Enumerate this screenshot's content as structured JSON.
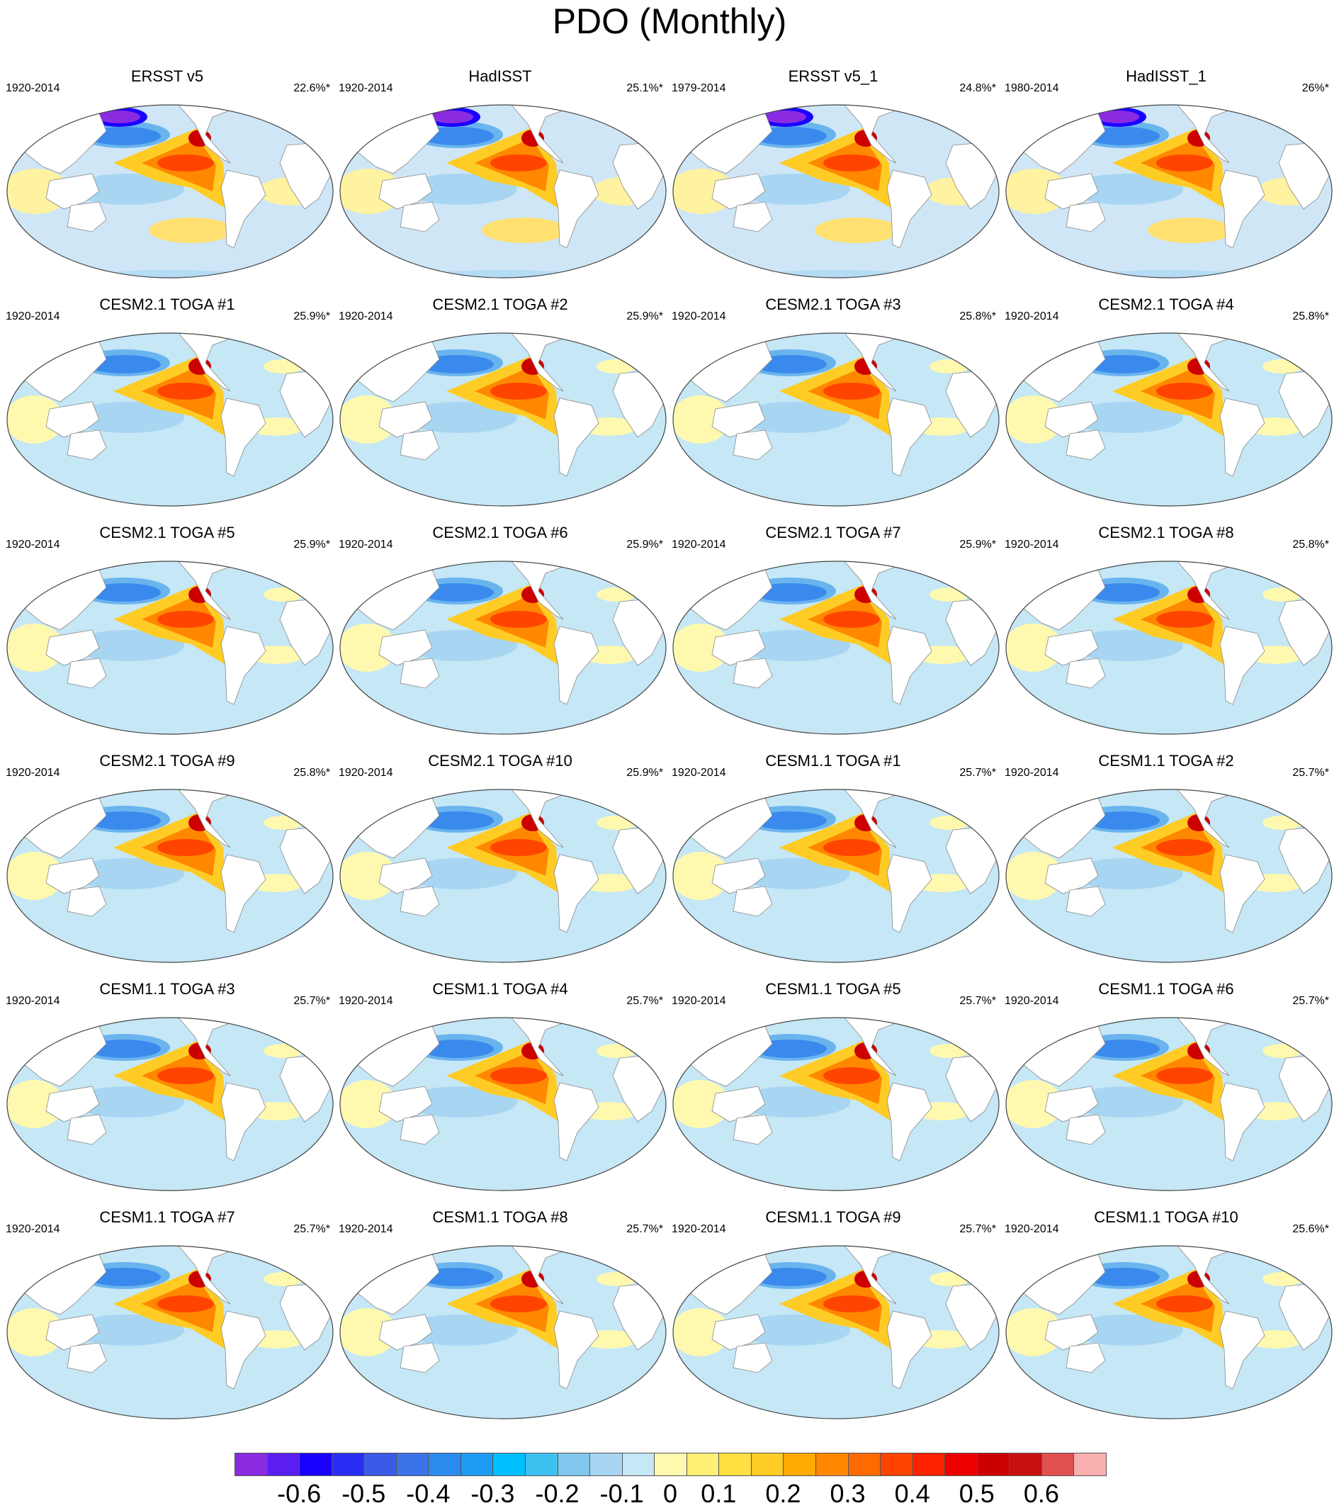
{
  "chart_data": {
    "type": "heatmap",
    "title": "PDO (Monthly)",
    "layout": "6 rows x 4 columns of global map panels",
    "panels": [
      {
        "title": "ERSST v5",
        "period": "1920-2014",
        "pct": "22.6%*",
        "style": "obs"
      },
      {
        "title": "HadISST",
        "period": "1920-2014",
        "pct": "25.1%*",
        "style": "obs"
      },
      {
        "title": "ERSST v5_1",
        "period": "1979-2014",
        "pct": "24.8%*",
        "style": "obs"
      },
      {
        "title": "HadISST_1",
        "period": "1980-2014",
        "pct": "26%*",
        "style": "obs"
      },
      {
        "title": "CESM2.1 TOGA #1",
        "period": "1920-2014",
        "pct": "25.9%*",
        "style": "model"
      },
      {
        "title": "CESM2.1 TOGA #2",
        "period": "1920-2014",
        "pct": "25.9%*",
        "style": "model"
      },
      {
        "title": "CESM2.1 TOGA #3",
        "period": "1920-2014",
        "pct": "25.8%*",
        "style": "model"
      },
      {
        "title": "CESM2.1 TOGA #4",
        "period": "1920-2014",
        "pct": "25.8%*",
        "style": "model"
      },
      {
        "title": "CESM2.1 TOGA #5",
        "period": "1920-2014",
        "pct": "25.9%*",
        "style": "model"
      },
      {
        "title": "CESM2.1 TOGA #6",
        "period": "1920-2014",
        "pct": "25.9%*",
        "style": "model"
      },
      {
        "title": "CESM2.1 TOGA #7",
        "period": "1920-2014",
        "pct": "25.9%*",
        "style": "model"
      },
      {
        "title": "CESM2.1 TOGA #8",
        "period": "1920-2014",
        "pct": "25.8%*",
        "style": "model"
      },
      {
        "title": "CESM2.1 TOGA #9",
        "period": "1920-2014",
        "pct": "25.8%*",
        "style": "model"
      },
      {
        "title": "CESM2.1 TOGA #10",
        "period": "1920-2014",
        "pct": "25.9%*",
        "style": "model"
      },
      {
        "title": "CESM1.1 TOGA #1",
        "period": "1920-2014",
        "pct": "25.7%*",
        "style": "model"
      },
      {
        "title": "CESM1.1 TOGA #2",
        "period": "1920-2014",
        "pct": "25.7%*",
        "style": "model"
      },
      {
        "title": "CESM1.1 TOGA #3",
        "period": "1920-2014",
        "pct": "25.7%*",
        "style": "model"
      },
      {
        "title": "CESM1.1 TOGA #4",
        "period": "1920-2014",
        "pct": "25.7%*",
        "style": "model"
      },
      {
        "title": "CESM1.1 TOGA #5",
        "period": "1920-2014",
        "pct": "25.7%*",
        "style": "model"
      },
      {
        "title": "CESM1.1 TOGA #6",
        "period": "1920-2014",
        "pct": "25.7%*",
        "style": "model"
      },
      {
        "title": "CESM1.1 TOGA #7",
        "period": "1920-2014",
        "pct": "25.7%*",
        "style": "model"
      },
      {
        "title": "CESM1.1 TOGA #8",
        "period": "1920-2014",
        "pct": "25.7%*",
        "style": "model"
      },
      {
        "title": "CESM1.1 TOGA #9",
        "period": "1920-2014",
        "pct": "25.7%*",
        "style": "model"
      },
      {
        "title": "CESM1.1 TOGA #10",
        "period": "1920-2014",
        "pct": "25.6%*",
        "style": "model"
      }
    ],
    "colorbar": {
      "colors": [
        "#8a2be2",
        "#5a1ef0",
        "#1a00ff",
        "#2a2ef5",
        "#3a5ae8",
        "#3a74e8",
        "#2a8aee",
        "#1e9bf5",
        "#00bfff",
        "#3cc0f0",
        "#80c8ee",
        "#a8d6f2",
        "#c5e7f6",
        "#fff9b0",
        "#fff075",
        "#ffe040",
        "#ffcc25",
        "#ffaa00",
        "#ff8800",
        "#ff6a00",
        "#ff4400",
        "#ff2200",
        "#ee0000",
        "#cc0000",
        "#c81010",
        "#e05050",
        "#fbb0b0"
      ],
      "labels": [
        {
          "text": "-0.6",
          "pos": 2
        },
        {
          "text": "-0.5",
          "pos": 4
        },
        {
          "text": "-0.4",
          "pos": 6
        },
        {
          "text": "-0.3",
          "pos": 8
        },
        {
          "text": "-0.2",
          "pos": 10
        },
        {
          "text": "-0.1",
          "pos": 12
        },
        {
          "text": "0",
          "pos": 13.5
        },
        {
          "text": "0.1",
          "pos": 15
        },
        {
          "text": "0.2",
          "pos": 17
        },
        {
          "text": "0.3",
          "pos": 19
        },
        {
          "text": "0.4",
          "pos": 21
        },
        {
          "text": "0.5",
          "pos": 23
        },
        {
          "text": "0.6",
          "pos": 25
        }
      ]
    }
  }
}
